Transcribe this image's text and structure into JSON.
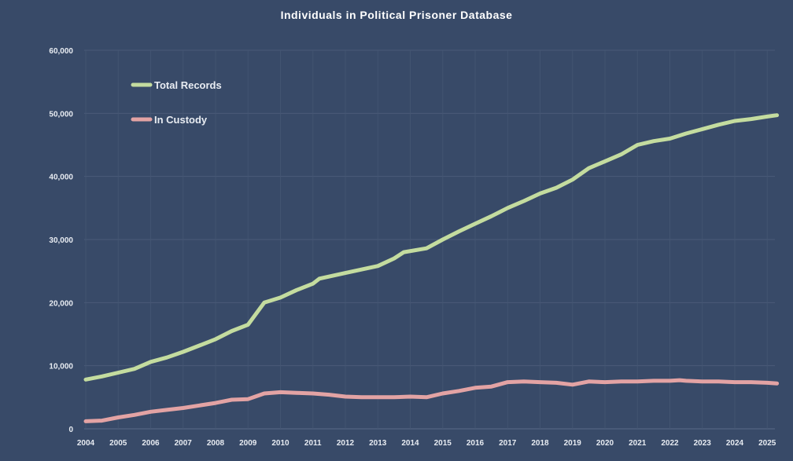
{
  "chart_data": {
    "type": "line",
    "title": "Individuals in Political Prisoner Database",
    "xlabel": "",
    "ylabel": "",
    "xlim": [
      2004,
      2025.3
    ],
    "ylim": [
      0,
      60000
    ],
    "grid": true,
    "legend_position": "top-left",
    "x_tick_labels": [
      "2004",
      "2005",
      "2006",
      "2007",
      "2008",
      "2009",
      "2010",
      "2011",
      "2012",
      "2013",
      "2014",
      "2015",
      "2016",
      "2017",
      "2018",
      "2019",
      "2020",
      "2021",
      "2022",
      "2023",
      "2024",
      "2025"
    ],
    "y_tick_labels": [
      "0",
      "10,000",
      "20,000",
      "30,000",
      "40,000",
      "50,000",
      "60,000"
    ],
    "y_ticks": [
      0,
      10000,
      20000,
      30000,
      40000,
      50000,
      60000
    ],
    "series": [
      {
        "name": "Total Records",
        "color": "#c4dc9f",
        "x": [
          2004,
          2004.5,
          2005,
          2005.5,
          2006,
          2006.5,
          2007,
          2007.5,
          2008,
          2008.5,
          2009,
          2009.5,
          2010,
          2010.5,
          2011,
          2011.2,
          2012,
          2013,
          2013.5,
          2013.8,
          2014.5,
          2015,
          2015.5,
          2016,
          2016.5,
          2017,
          2017.5,
          2018,
          2018.5,
          2019,
          2019.5,
          2020,
          2020.5,
          2021,
          2021.5,
          2022,
          2022.5,
          2023,
          2023.5,
          2024,
          2024.5,
          2025,
          2025.3
        ],
        "y": [
          7800,
          8300,
          8900,
          9500,
          10600,
          11300,
          12200,
          13200,
          14200,
          15500,
          16500,
          20000,
          20800,
          22000,
          23000,
          23800,
          24700,
          25800,
          27000,
          28000,
          28600,
          30000,
          31300,
          32500,
          33700,
          35000,
          36100,
          37300,
          38200,
          39500,
          41300,
          42400,
          43500,
          45000,
          45600,
          46000,
          46800,
          47500,
          48200,
          48800,
          49100,
          49500,
          49700
        ]
      },
      {
        "name": "In Custody",
        "color": "#e3a3a4",
        "x": [
          2004,
          2004.5,
          2005,
          2005.5,
          2006,
          2006.5,
          2007,
          2007.5,
          2008,
          2008.5,
          2009,
          2009.5,
          2010,
          2010.5,
          2011,
          2011.5,
          2012,
          2012.5,
          2013,
          2013.5,
          2014,
          2014.5,
          2015,
          2015.5,
          2016,
          2016.5,
          2017,
          2017.5,
          2018,
          2018.5,
          2019,
          2019.5,
          2020,
          2020.5,
          2021,
          2021.5,
          2022,
          2022.3,
          2022.5,
          2023,
          2023.5,
          2024,
          2024.5,
          2025,
          2025.3
        ],
        "y": [
          1200,
          1300,
          1800,
          2200,
          2700,
          3000,
          3300,
          3700,
          4100,
          4600,
          4700,
          5600,
          5800,
          5700,
          5600,
          5400,
          5100,
          5000,
          5000,
          5000,
          5100,
          5000,
          5600,
          6000,
          6500,
          6700,
          7400,
          7500,
          7400,
          7300,
          7000,
          7500,
          7400,
          7500,
          7500,
          7600,
          7600,
          7700,
          7600,
          7500,
          7500,
          7400,
          7400,
          7300,
          7200
        ]
      }
    ]
  }
}
